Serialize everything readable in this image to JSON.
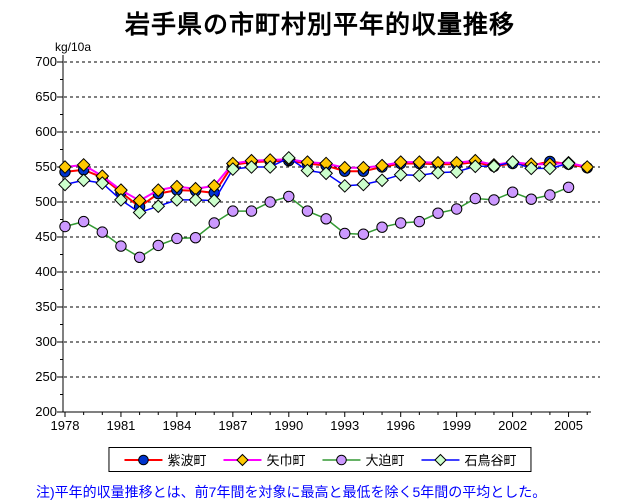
{
  "title": "岩手県の市町村別平年的収量推移",
  "y_axis_unit": "kg/10a",
  "footnote": "注)平年的収量推移とは、前7年間を対象に最高と最低を除く5年間の平均とした。",
  "footnote_color": "#0000ff",
  "chart_data": {
    "type": "line",
    "x": [
      1978,
      1979,
      1980,
      1981,
      1982,
      1983,
      1984,
      1985,
      1986,
      1987,
      1988,
      1989,
      1990,
      1991,
      1992,
      1993,
      1994,
      1995,
      1996,
      1997,
      1998,
      1999,
      2000,
      2001,
      2002,
      2003,
      2004,
      2005,
      2006
    ],
    "x_tick_labels": [
      "1978",
      "1981",
      "1984",
      "1987",
      "1990",
      "1993",
      "1996",
      "1999",
      "2002",
      "2005"
    ],
    "ylim": [
      200,
      700
    ],
    "y_ticks": [
      200,
      250,
      300,
      350,
      400,
      450,
      500,
      550,
      600,
      650,
      700
    ],
    "grid": "horizontal-dashed-black",
    "legend_position": "bottom",
    "series": [
      {
        "name": "紫波町",
        "line_color": "#ff0000",
        "line_width": 2,
        "marker": "circle",
        "marker_color": "#0033cc",
        "values": [
          543,
          546,
          535,
          514,
          493,
          512,
          517,
          516,
          513,
          553,
          557,
          558,
          559,
          555,
          552,
          544,
          544,
          550,
          555,
          555,
          554,
          554,
          557,
          551,
          555,
          552,
          558,
          554,
          549
        ]
      },
      {
        "name": "矢巾町",
        "line_color": "#ff00ff",
        "line_width": 2,
        "marker": "diamond",
        "marker_color": "#ffc800",
        "values": [
          550,
          553,
          537,
          517,
          502,
          517,
          522,
          519,
          523,
          555,
          559,
          560,
          561,
          557,
          555,
          549,
          549,
          552,
          557,
          557,
          556,
          556,
          559,
          553,
          557,
          554,
          554,
          556,
          550
        ]
      },
      {
        "name": "大迫町",
        "line_color": "#339933",
        "line_width": 1.5,
        "marker": "circle",
        "marker_color": "#cc99ff",
        "values": [
          465,
          472,
          457,
          437,
          421,
          438,
          448,
          449,
          470,
          487,
          487,
          500,
          508,
          487,
          476,
          455,
          454,
          464,
          470,
          472,
          484,
          490,
          505,
          503,
          514,
          504,
          510,
          521,
          null
        ]
      },
      {
        "name": "石鳥谷町",
        "line_color": "#0000ff",
        "line_width": 1.5,
        "marker": "diamond",
        "marker_color": "#ccffcc",
        "values": [
          525,
          531,
          527,
          503,
          485,
          494,
          503,
          503,
          502,
          547,
          550,
          550,
          563,
          545,
          541,
          523,
          525,
          531,
          539,
          538,
          542,
          543,
          551,
          551,
          557,
          548,
          548,
          555,
          null
        ]
      }
    ]
  }
}
